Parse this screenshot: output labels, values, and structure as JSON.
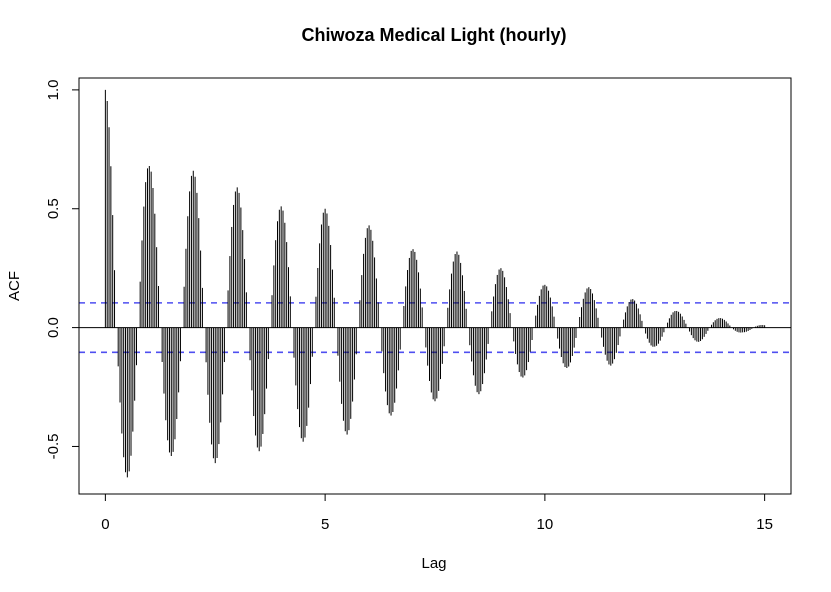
{
  "chart_data": {
    "type": "bar",
    "subtype": "acf",
    "title": "Chiwoza Medical Light (hourly)",
    "xlabel": "Lag",
    "ylabel": "ACF",
    "xlim": [
      -0.6,
      15.6
    ],
    "ylim": [
      -0.7,
      1.05
    ],
    "xticks": [
      0,
      5,
      10,
      15
    ],
    "xtick_labels": [
      "0",
      "5",
      "10",
      "15"
    ],
    "yticks": [
      -0.5,
      0.0,
      0.5,
      1.0
    ],
    "ytick_labels": [
      "-0.5",
      "0.0",
      "0.5",
      "1.0"
    ],
    "lag_step": 0.04166667,
    "max_lag": 15,
    "lags_per_cycle": 24,
    "confidence_bound": 0.104,
    "grid": false,
    "colors": {
      "bars": "#000000",
      "confidence": "#4f4ff0",
      "zero_line": "#000000"
    },
    "envelope": {
      "description": "Peak amplitude near each integer lag and trough amplitude near each half-integer lag",
      "peaks": [
        {
          "lag": 0,
          "value": 1.0
        },
        {
          "lag": 1,
          "value": 0.68
        },
        {
          "lag": 2,
          "value": 0.66
        },
        {
          "lag": 3,
          "value": 0.59
        },
        {
          "lag": 4,
          "value": 0.51
        },
        {
          "lag": 5,
          "value": 0.5
        },
        {
          "lag": 6,
          "value": 0.43
        },
        {
          "lag": 7,
          "value": 0.33
        },
        {
          "lag": 8,
          "value": 0.32
        },
        {
          "lag": 9,
          "value": 0.25
        },
        {
          "lag": 10,
          "value": 0.18
        },
        {
          "lag": 11,
          "value": 0.17
        },
        {
          "lag": 12,
          "value": 0.12
        },
        {
          "lag": 13,
          "value": 0.07
        },
        {
          "lag": 14,
          "value": 0.04
        },
        {
          "lag": 15,
          "value": 0.01
        }
      ],
      "troughs": [
        {
          "lag": 0.5,
          "value": -0.63
        },
        {
          "lag": 1.5,
          "value": -0.54
        },
        {
          "lag": 2.5,
          "value": -0.57
        },
        {
          "lag": 3.5,
          "value": -0.52
        },
        {
          "lag": 4.5,
          "value": -0.48
        },
        {
          "lag": 5.5,
          "value": -0.45
        },
        {
          "lag": 6.5,
          "value": -0.37
        },
        {
          "lag": 7.5,
          "value": -0.31
        },
        {
          "lag": 8.5,
          "value": -0.28
        },
        {
          "lag": 9.5,
          "value": -0.21
        },
        {
          "lag": 10.5,
          "value": -0.17
        },
        {
          "lag": 11.5,
          "value": -0.16
        },
        {
          "lag": 12.5,
          "value": -0.08
        },
        {
          "lag": 13.5,
          "value": -0.06
        },
        {
          "lag": 14.5,
          "value": -0.02
        }
      ]
    }
  }
}
